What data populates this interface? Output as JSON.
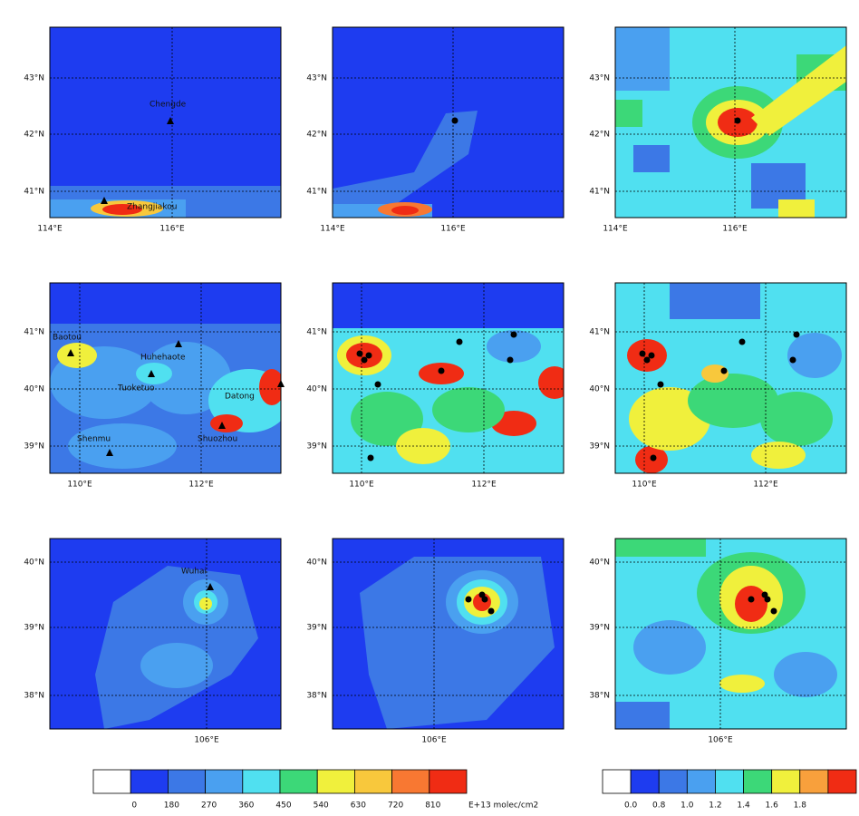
{
  "rows": [
    {
      "lat_labels": [
        "43°N",
        "42°N",
        "41°N"
      ],
      "lon_labels": [
        "114°E",
        "116°E"
      ],
      "places": [
        "Chengde",
        "Zhangjiakou"
      ]
    },
    {
      "lat_labels": [
        "41°N",
        "40°N",
        "39°N"
      ],
      "lon_labels": [
        "110°E",
        "112°E"
      ],
      "places": [
        "Baotou",
        "Huhehaote",
        "Tuoketuo",
        "Datong",
        "Shenmu",
        "Shuozhou"
      ]
    },
    {
      "lat_labels": [
        "40°N",
        "39°N",
        "38°N"
      ],
      "lon_labels": [
        "106°E"
      ],
      "places": [
        "Wuhai"
      ]
    }
  ],
  "colorbars": [
    {
      "colors": [
        "#ffffff",
        "#1e3cf0",
        "#3c78e6",
        "#4aa0f0",
        "#50e0f0",
        "#3cd878",
        "#f0f03c",
        "#f8c83c",
        "#f87832",
        "#f02c14"
      ],
      "labels": [
        "0",
        "180",
        "270",
        "360",
        "450",
        "540",
        "630",
        "720",
        "810"
      ],
      "unit": "E+13 molec/cm2"
    },
    {
      "colors": [
        "#ffffff",
        "#1e3cf0",
        "#3c78e6",
        "#4aa0f0",
        "#50e0f0",
        "#3cd878",
        "#f0f03c",
        "#f8a03c",
        "#f02c14"
      ],
      "labels": [
        "0.0",
        "0.8",
        "1.0",
        "1.2",
        "1.4",
        "1.6",
        "1.8"
      ]
    }
  ]
}
